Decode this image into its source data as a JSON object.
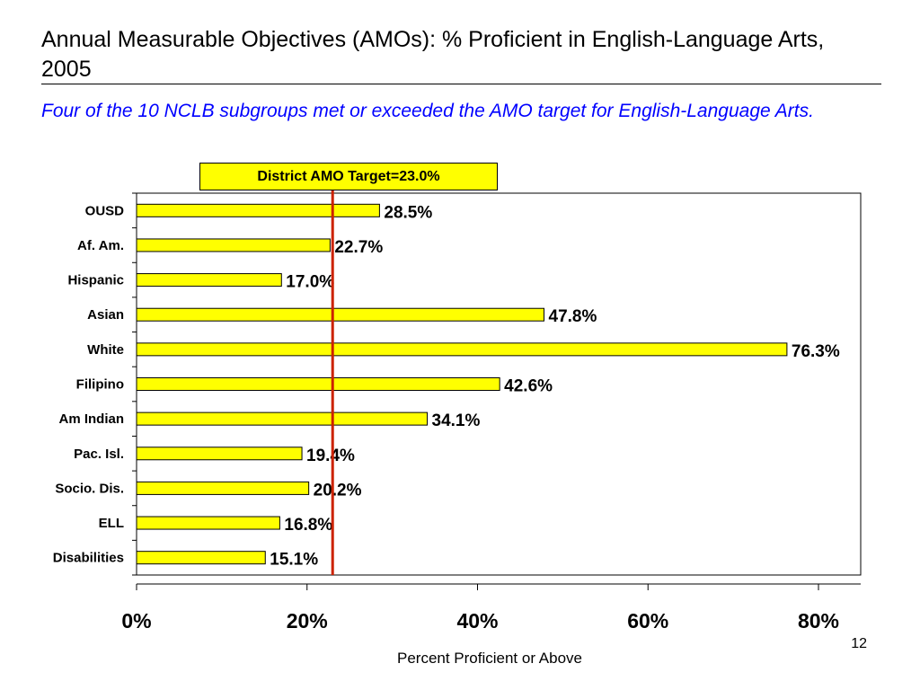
{
  "slide": {
    "title": "Annual Measurable Objectives (AMOs): % Proficient in English-Language Arts, 2005",
    "subtitle": "Four of the 10 NCLB subgroups met or exceeded the AMO target for English-Language Arts.",
    "target_label": "District AMO Target=23.0%",
    "page_number": "12"
  },
  "chart_data": {
    "type": "bar",
    "orientation": "horizontal",
    "categories": [
      "OUSD",
      "Af. Am.",
      "Hispanic",
      "Asian",
      "White",
      "Filipino",
      "Am Indian",
      "Pac. Isl.",
      "Socio. Dis.",
      "ELL",
      "Disabilities"
    ],
    "values": [
      28.5,
      22.7,
      17.0,
      47.8,
      76.3,
      42.6,
      34.1,
      19.4,
      20.2,
      16.8,
      15.1
    ],
    "data_labels": [
      "28.5%",
      "22.7%",
      "17.0%",
      "47.8%",
      "76.3%",
      "42.6%",
      "34.1%",
      "19.4%",
      "20.2%",
      "16.8%",
      "15.1%"
    ],
    "xlabel": "Percent Proficient or Above",
    "xticks": [
      "0%",
      "20%",
      "40%",
      "60%",
      "80%"
    ],
    "xlim": [
      0,
      85
    ],
    "target": 23.0,
    "bar_color": "#ffff00",
    "target_line_color": "#cc2200",
    "grid": false
  }
}
